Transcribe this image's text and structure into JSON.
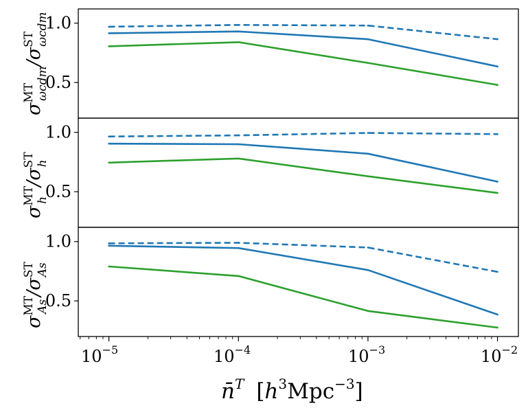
{
  "chart_data": [
    {
      "type": "line",
      "panel": "omega_cdm",
      "ylabel": "σ^MT_ωcdm / σ^ST_ωcdm",
      "ylabel_parts": {
        "sigma": "σ",
        "sup": "MT",
        "sub": "ωcdm",
        "slash": "/",
        "sigma2": "σ",
        "sup2": "ST",
        "sub2": "ωcdm"
      },
      "x": [
        1e-05,
        0.0001,
        0.001,
        0.01
      ],
      "ylim": [
        0.2,
        1.12
      ],
      "yticks": [
        0.5,
        1.0
      ],
      "ytick_labels": [
        "0.5",
        "1.0"
      ],
      "series": [
        {
          "name": "dashed-blue",
          "color": "#1f77b4",
          "style": "dashed",
          "values": [
            0.97,
            0.985,
            0.98,
            0.865
          ]
        },
        {
          "name": "solid-blue",
          "color": "#1f77b4",
          "style": "solid",
          "values": [
            0.915,
            0.93,
            0.865,
            0.635
          ]
        },
        {
          "name": "solid-green",
          "color": "#2ca02c",
          "style": "solid",
          "values": [
            0.805,
            0.84,
            0.665,
            0.48
          ]
        }
      ]
    },
    {
      "type": "line",
      "panel": "h",
      "ylabel": "σ^MT_h / σ^ST_h",
      "ylabel_parts": {
        "sigma": "σ",
        "sup": "MT",
        "sub": "h",
        "slash": "/",
        "sigma2": "σ",
        "sup2": "ST",
        "sub2": "h"
      },
      "x": [
        1e-05,
        0.0001,
        0.001,
        0.01
      ],
      "ylim": [
        0.2,
        1.12
      ],
      "yticks": [
        0.5,
        1.0
      ],
      "ytick_labels": [
        "0.5",
        "1.0"
      ],
      "series": [
        {
          "name": "dashed-blue",
          "color": "#1f77b4",
          "style": "dashed",
          "values": [
            0.965,
            0.975,
            0.995,
            0.985
          ]
        },
        {
          "name": "solid-blue",
          "color": "#1f77b4",
          "style": "solid",
          "values": [
            0.905,
            0.9,
            0.82,
            0.585
          ]
        },
        {
          "name": "solid-green",
          "color": "#2ca02c",
          "style": "solid",
          "values": [
            0.745,
            0.78,
            0.63,
            0.49
          ]
        }
      ]
    },
    {
      "type": "line",
      "panel": "A_s",
      "ylabel": "σ^MT_As / σ^ST_As",
      "ylabel_parts": {
        "sigma": "σ",
        "sup": "MT",
        "sub": "As",
        "slash": "/",
        "sigma2": "σ",
        "sup2": "ST",
        "sub2": "As"
      },
      "x": [
        1e-05,
        0.0001,
        0.001,
        0.01
      ],
      "ylim": [
        0.2,
        1.12
      ],
      "yticks": [
        0.5,
        1.0
      ],
      "ytick_labels": [
        "0.5",
        "1.0"
      ],
      "series": [
        {
          "name": "dashed-blue",
          "color": "#1f77b4",
          "style": "dashed",
          "values": [
            0.985,
            0.99,
            0.95,
            0.745
          ]
        },
        {
          "name": "solid-blue",
          "color": "#1f77b4",
          "style": "solid",
          "values": [
            0.965,
            0.945,
            0.76,
            0.385
          ]
        },
        {
          "name": "solid-green",
          "color": "#2ca02c",
          "style": "solid",
          "values": [
            0.79,
            0.71,
            0.415,
            0.275
          ]
        }
      ]
    }
  ],
  "xaxis": {
    "scale": "log",
    "xlim": [
      5.8e-06,
      0.0145
    ],
    "ticks": [
      1e-05,
      0.0001,
      0.001,
      0.01
    ],
    "tick_bases": [
      "10",
      "10",
      "10",
      "10"
    ],
    "tick_exponents": [
      "−5",
      "−4",
      "−3",
      "−2"
    ],
    "xlabel": "n̄^T [h^3 Mpc^−3]",
    "xlabel_parts": {
      "n": "n̄",
      "sup": "T",
      "open": "[",
      "h": "h",
      "hsup": "3",
      "unit": "Mpc",
      "unitsup": "−3",
      "close": "]"
    }
  }
}
